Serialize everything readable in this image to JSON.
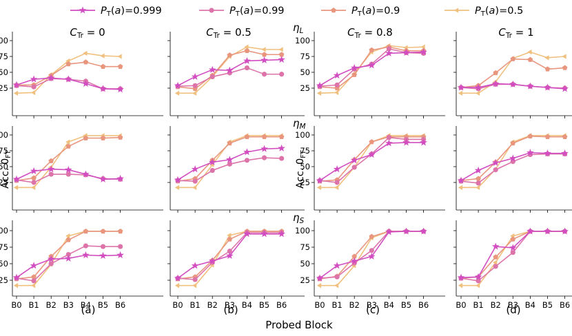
{
  "chart_data": {
    "type": "line",
    "x_categories": [
      "B0",
      "B1",
      "B2",
      "B3",
      "B4",
      "B5",
      "B6"
    ],
    "xlabel": "Probed Block",
    "ylabel": "Acc. 0FT",
    "y_ticks": [
      25,
      50,
      75,
      100
    ],
    "column_titles": [
      "C_Tr = 0",
      "C_Tr = 0.5",
      "C_Tr = 0.8",
      "C_Tr = 1"
    ],
    "row_titles": [
      "η_L",
      "η_M",
      "η_S"
    ],
    "subplot_labels": [
      "(a)",
      "(b)",
      "(c)",
      "(d)"
    ],
    "legend": [
      {
        "label": "P_T(a) = 0.999",
        "color": "#d14dc0",
        "marker": "star"
      },
      {
        "label": "P_T(a) = 0.99",
        "color": "#dc74a9",
        "marker": "circle"
      },
      {
        "label": "P_T(a) = 0.9",
        "color": "#e8967e",
        "marker": "pentagon"
      },
      {
        "label": "P_T(a) = 0.5",
        "color": "#f0c07e",
        "marker": "triangle-left"
      }
    ],
    "panels": [
      [
        {
          "col": 0,
          "row": 0,
          "series": [
            [
              30,
              39,
              41,
              39,
              32,
              24,
              23
            ],
            [
              29,
              27,
              40,
              39,
              36,
              24,
              24
            ],
            [
              30,
              30,
              45,
              63,
              66,
              59,
              59
            ],
            [
              17,
              18,
              46,
              68,
              80,
              76,
              75
            ]
          ]
        },
        {
          "col": 1,
          "row": 0,
          "series": [
            [
              29,
              43,
              54,
              53,
              68,
              69,
              70
            ],
            [
              28,
              29,
              43,
              49,
              57,
              47,
              47
            ],
            [
              27,
              24,
              45,
              77,
              84,
              78,
              78
            ],
            [
              17,
              17,
              43,
              75,
              90,
              86,
              86
            ]
          ]
        },
        {
          "col": 2,
          "row": 0,
          "series": [
            [
              29,
              45,
              57,
              61,
              80,
              81,
              82
            ],
            [
              28,
              30,
              55,
              63,
              87,
              81,
              80
            ],
            [
              27,
              25,
              46,
              85,
              90,
              84,
              84
            ],
            [
              17,
              18,
              48,
              82,
              92,
              89,
              90
            ]
          ]
        },
        {
          "col": 3,
          "row": 0,
          "series": [
            [
              26,
              26,
              32,
              31,
              28,
              26,
              24
            ],
            [
              26,
              24,
              31,
              31,
              28,
              26,
              25
            ],
            [
              26,
              29,
              49,
              71,
              70,
              55,
              57
            ],
            [
              17,
              17,
              35,
              72,
              82,
              73,
              75
            ]
          ]
        }
      ],
      [
        {
          "col": 0,
          "row": 1,
          "series": [
            [
              30,
              43,
              46,
              45,
              38,
              30,
              31
            ],
            [
              29,
              25,
              38,
              38,
              37,
              31,
              30
            ],
            [
              28,
              32,
              59,
              82,
              95,
              95,
              96
            ],
            [
              17,
              17,
              49,
              89,
              99,
              99,
              99
            ]
          ]
        },
        {
          "col": 1,
          "row": 1,
          "series": [
            [
              29,
              46,
              57,
              61,
              73,
              78,
              79
            ],
            [
              28,
              27,
              44,
              54,
              60,
              64,
              63
            ],
            [
              27,
              31,
              60,
              87,
              97,
              97,
              97
            ],
            [
              17,
              17,
              53,
              89,
              99,
              99,
              99
            ]
          ]
        },
        {
          "col": 2,
          "row": 1,
          "series": [
            [
              28,
              46,
              60,
              69,
              87,
              88,
              88
            ],
            [
              28,
              25,
              49,
              70,
              96,
              93,
              93
            ],
            [
              27,
              29,
              61,
              89,
              97,
              97,
              97
            ],
            [
              17,
              17,
              49,
              89,
              99,
              99,
              99
            ]
          ]
        },
        {
          "col": 3,
          "row": 1,
          "series": [
            [
              28,
              44,
              56,
              63,
              72,
              71,
              71
            ],
            [
              27,
              24,
              45,
              58,
              69,
              70,
              70
            ],
            [
              28,
              31,
              57,
              87,
              98,
              97,
              97
            ],
            [
              17,
              17,
              46,
              89,
              99,
              99,
              99
            ]
          ]
        }
      ],
      [
        {
          "col": 0,
          "row": 2,
          "series": [
            [
              29,
              47,
              57,
              58,
              63,
              62,
              63
            ],
            [
              28,
              24,
              50,
              64,
              77,
              76,
              76
            ],
            [
              27,
              30,
              61,
              86,
              99,
              99,
              99
            ],
            [
              17,
              17,
              49,
              92,
              99,
              99,
              99
            ]
          ]
        },
        {
          "col": 1,
          "row": 2,
          "series": [
            [
              28,
              47,
              54,
              62,
              95,
              95,
              95
            ],
            [
              28,
              26,
              52,
              69,
              97,
              97,
              97
            ],
            [
              27,
              30,
              55,
              87,
              99,
              99,
              99
            ],
            [
              17,
              17,
              48,
              93,
              99,
              99,
              99
            ]
          ]
        },
        {
          "col": 2,
          "row": 2,
          "series": [
            [
              28,
              47,
              54,
              61,
              98,
              99,
              99
            ],
            [
              28,
              30,
              51,
              70,
              99,
              99,
              99
            ],
            [
              27,
              31,
              61,
              91,
              99,
              99,
              99
            ],
            [
              17,
              17,
              47,
              89,
              99,
              99,
              99
            ]
          ]
        },
        {
          "col": 3,
          "row": 2,
          "series": [
            [
              29,
              30,
              76,
              74,
              99,
              99,
              99
            ],
            [
              28,
              24,
              46,
              67,
              99,
              99,
              99
            ],
            [
              28,
              30,
              60,
              87,
              99,
              99,
              99
            ],
            [
              17,
              17,
              52,
              92,
              99,
              99,
              99
            ]
          ]
        }
      ]
    ],
    "y_axis_titles": [
      "Acc. 0",
      "FT"
    ]
  }
}
